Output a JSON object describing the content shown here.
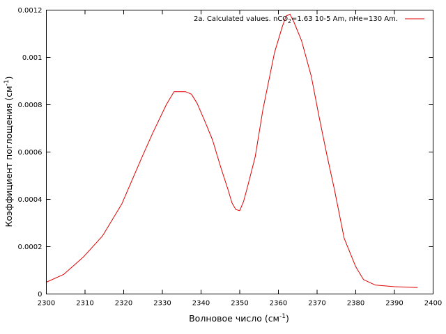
{
  "chart_data": {
    "type": "line",
    "xlabel": "Волновое число (см",
    "xlabel_sup": "-1",
    "xlabel_end": ")",
    "ylabel": "Коэффициент поглощения (см",
    "ylabel_sup": "-1",
    "ylabel_end": ")",
    "xlim": [
      2300,
      2400
    ],
    "ylim": [
      0,
      0.0012
    ],
    "x_ticks": [
      "2300",
      "2310",
      "2320",
      "2330",
      "2340",
      "2350",
      "2360",
      "2370",
      "2380",
      "2390",
      "2400"
    ],
    "y_ticks": [
      "0",
      "0.0002",
      "0.0004",
      "0.0006",
      "0.0008",
      "0.001",
      "0.0012"
    ],
    "grid": false,
    "legend_position": "top-right",
    "series": [
      {
        "legend_parts": [
          "2a. Calculated values. nCO",
          "2",
          "=1.63 10-5 Am, nHe=130 Am."
        ],
        "color": "#e00000",
        "points": [
          [
            2300,
            5e-05
          ],
          [
            2304.5,
            8.3e-05
          ],
          [
            2309.5,
            0.000155
          ],
          [
            2314.5,
            0.000245
          ],
          [
            2319.5,
            0.00038
          ],
          [
            2324.5,
            0.00057
          ],
          [
            2327.5,
            0.00068
          ],
          [
            2331.0,
            0.0008
          ],
          [
            2333.0,
            0.000855
          ],
          [
            2336.0,
            0.000855
          ],
          [
            2337.5,
            0.000845
          ],
          [
            2339.0,
            0.000805
          ],
          [
            2341.0,
            0.00073
          ],
          [
            2343.0,
            0.00065
          ],
          [
            2345.0,
            0.00054
          ],
          [
            2347.0,
            0.00044
          ],
          [
            2348.0,
            0.000385
          ],
          [
            2349.0,
            0.000357
          ],
          [
            2350.0,
            0.000352
          ],
          [
            2351.0,
            0.000392
          ],
          [
            2352.0,
            0.000452
          ],
          [
            2354.0,
            0.00058
          ],
          [
            2356.0,
            0.00078
          ],
          [
            2359.0,
            0.00102
          ],
          [
            2361.0,
            0.00113
          ],
          [
            2362.0,
            0.001175
          ],
          [
            2363.0,
            0.001183
          ],
          [
            2364.0,
            0.00115
          ],
          [
            2366.0,
            0.00107
          ],
          [
            2368.5,
            0.00092
          ],
          [
            2370.5,
            0.00075
          ],
          [
            2372.5,
            0.00059
          ],
          [
            2374.5,
            0.00044
          ],
          [
            2377.0,
            0.000235
          ],
          [
            2380.0,
            0.000115
          ],
          [
            2382.0,
            6.1e-05
          ],
          [
            2385.0,
            3.8e-05
          ],
          [
            2390.0,
            3.1e-05
          ],
          [
            2396.0,
            2.7e-05
          ]
        ]
      }
    ]
  }
}
